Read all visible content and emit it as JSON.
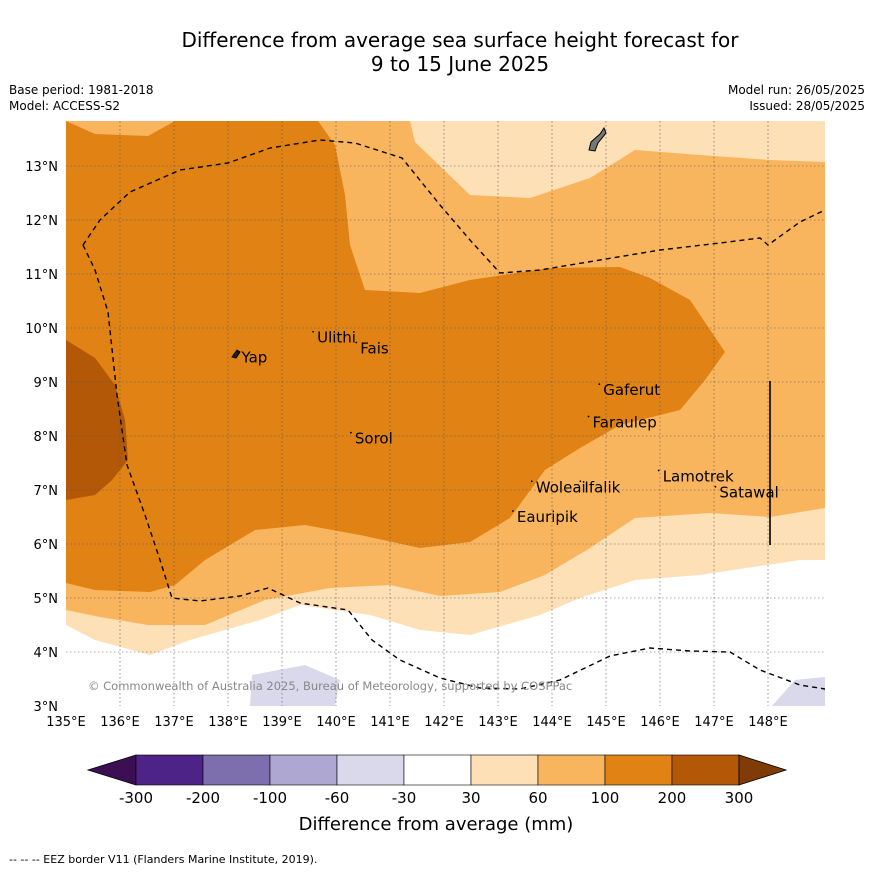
{
  "title_line1": "Difference from average sea surface height forecast for",
  "title_line2": "9 to 15 June 2025",
  "info": {
    "base_period": "Base period: 1981-2018",
    "model": "Model: ACCESS-S2",
    "model_run": "Model run: 26/05/2025",
    "issued": "Issued: 28/05/2025"
  },
  "axes": {
    "lon_labels": [
      "135°E",
      "136°E",
      "137°E",
      "138°E",
      "139°E",
      "140°E",
      "141°E",
      "142°E",
      "143°E",
      "144°E",
      "145°E",
      "146°E",
      "147°E",
      "148°E"
    ],
    "lat_labels": [
      "3°N",
      "4°N",
      "5°N",
      "6°N",
      "7°N",
      "8°N",
      "9°N",
      "10°N",
      "11°N",
      "12°N",
      "13°N"
    ]
  },
  "places": [
    {
      "name": "Yap",
      "lon": 138.25,
      "lat": 9.45
    },
    {
      "name": "Ulithi",
      "lon": 139.65,
      "lat": 9.82
    },
    {
      "name": "Fais",
      "lon": 140.45,
      "lat": 9.62
    },
    {
      "name": "Gaferut",
      "lon": 144.95,
      "lat": 8.85
    },
    {
      "name": "Faraulep",
      "lon": 144.75,
      "lat": 8.25
    },
    {
      "name": "Sorol",
      "lon": 140.35,
      "lat": 7.95
    },
    {
      "name": "Lamotrek",
      "lon": 146.05,
      "lat": 7.25
    },
    {
      "name": "Woleai",
      "lon": 143.7,
      "lat": 7.05
    },
    {
      "name": "Ifalik",
      "lon": 144.6,
      "lat": 7.05
    },
    {
      "name": "Satawal",
      "lon": 147.1,
      "lat": 6.95
    },
    {
      "name": "Eauripik",
      "lon": 143.35,
      "lat": 6.5
    }
  ],
  "copyright": "© Commonwealth of Australia 2025, Bureau of Meteorology, supported by COSPPac",
  "colorbar": {
    "label": "Difference from average (mm)",
    "tick_labels": [
      "-300",
      "-200",
      "-100",
      "-60",
      "-30",
      "30",
      "60",
      "100",
      "200",
      "300"
    ],
    "colors": [
      "#3b0f52",
      "#4e2387",
      "#7d6fae",
      "#ada7d2",
      "#d9d9eb",
      "#ffffff",
      "#fde0b6",
      "#f9b45e",
      "#e08214",
      "#b35806",
      "#7f3b08"
    ]
  },
  "footnote": "-- -- -- EEZ border V11 (Flanders Marine Institute, 2019)."
}
